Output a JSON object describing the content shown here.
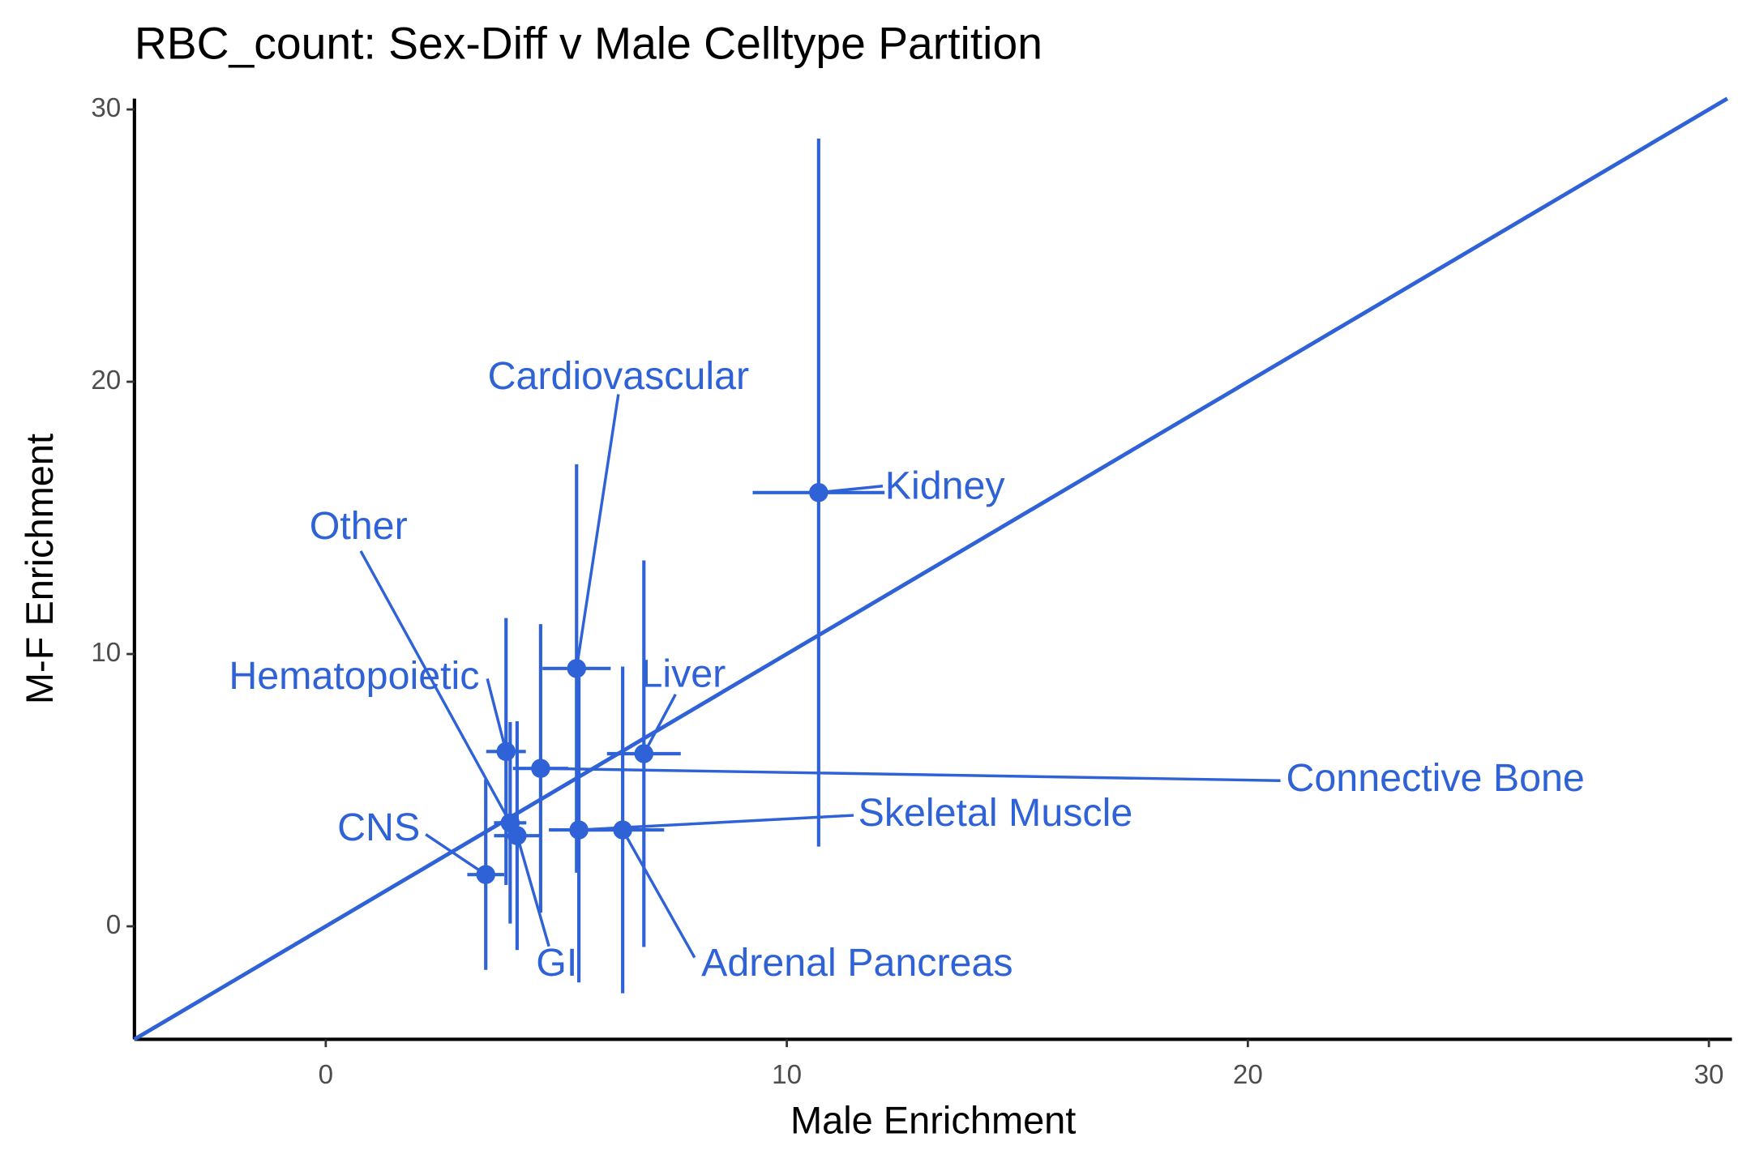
{
  "chart_data": {
    "type": "scatter",
    "title": "RBC_count: Sex-Diff v Male Celltype Partition",
    "x_label": "Male Enrichment",
    "y_label": "M-F Enrichment",
    "color": "#2f62d6",
    "identity_line": true,
    "xlim": [
      -4.15,
      30.5
    ],
    "ylim": [
      -4.15,
      30.4
    ],
    "xticks": [
      0,
      10,
      20,
      30
    ],
    "yticks": [
      0,
      10,
      20,
      30
    ],
    "points": [
      {
        "label": "Kidney",
        "x": 10.69,
        "y": 15.93,
        "xerr": 1.43,
        "yerr": 13.0
      },
      {
        "label": "Cardiovascular",
        "x": 5.44,
        "y": 9.47,
        "xerr": 0.74,
        "yerr": 7.5
      },
      {
        "label": "Other",
        "x": 4.0,
        "y": 3.8,
        "xerr": 0.35,
        "yerr": 3.7
      },
      {
        "label": "Hematopoietic",
        "x": 3.91,
        "y": 6.42,
        "xerr": 0.43,
        "yerr": 4.9
      },
      {
        "label": "Liver",
        "x": 6.9,
        "y": 6.34,
        "xerr": 0.8,
        "yerr": 7.1
      },
      {
        "label": "Connective Bone",
        "x": 4.66,
        "y": 5.8,
        "xerr": 0.6,
        "yerr": 5.3
      },
      {
        "label": "Skeletal Muscle",
        "x": 5.49,
        "y": 3.54,
        "xerr": 0.65,
        "yerr": 5.6
      },
      {
        "label": "CNS",
        "x": 3.47,
        "y": 1.9,
        "xerr": 0.4,
        "yerr": 3.5
      },
      {
        "label": "GI",
        "x": 4.15,
        "y": 3.33,
        "xerr": 0.5,
        "yerr": 4.2
      },
      {
        "label": "Adrenal Pancreas",
        "x": 6.44,
        "y": 3.54,
        "xerr": 0.9,
        "yerr": 6.0
      }
    ]
  }
}
